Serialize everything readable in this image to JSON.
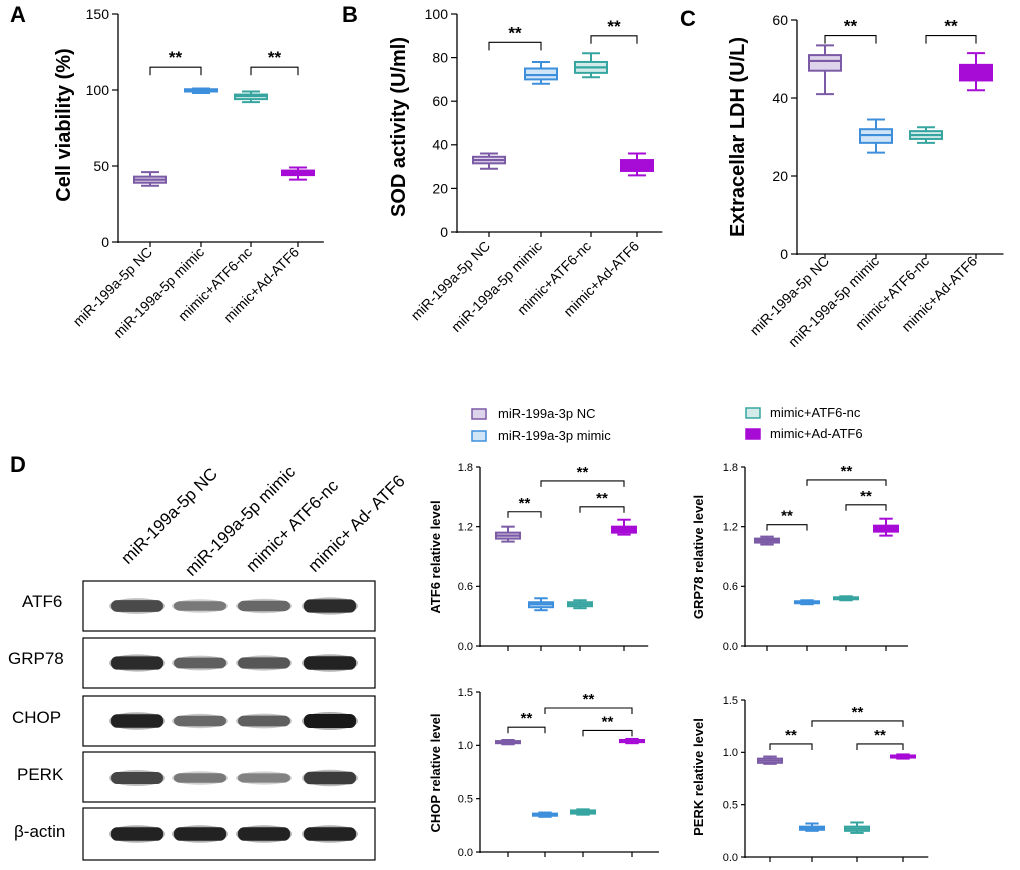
{
  "panels": {
    "A": {
      "label": "A"
    },
    "B": {
      "label": "B"
    },
    "C": {
      "label": "C"
    },
    "D": {
      "label": "D"
    }
  },
  "colors": {
    "nc": "#7b5aa6",
    "mimic": "#3d8fdc",
    "atf6nc": "#36a5a0",
    "adatf6": "#a70bd6"
  },
  "chart_data": [
    {
      "id": "A",
      "type": "box",
      "ylabel": "Cell viability (%)",
      "ylim": [
        0,
        150
      ],
      "yticks": [
        0,
        50,
        100,
        150
      ],
      "categories": [
        "miR-199a-5p NC",
        "miR-199a-5p mimic",
        "mimic+ATF6-nc",
        "mimic+Ad-ATF6"
      ],
      "series": [
        {
          "name": "miR-199a-5p NC",
          "min": 37,
          "q1": 39,
          "median": 41,
          "q3": 43,
          "max": 46
        },
        {
          "name": "miR-199a-5p mimic",
          "min": 98,
          "q1": 99,
          "median": 100,
          "q3": 100.5,
          "max": 101
        },
        {
          "name": "mimic+ATF6-nc",
          "min": 92,
          "q1": 94,
          "median": 96,
          "q3": 97,
          "max": 99
        },
        {
          "name": "mimic+Ad-ATF6",
          "min": 41,
          "q1": 44,
          "median": 46,
          "q3": 47,
          "max": 49
        }
      ],
      "significance": [
        {
          "from": 0,
          "to": 1,
          "label": "**",
          "level": 115
        },
        {
          "from": 2,
          "to": 3,
          "label": "**",
          "level": 115
        }
      ]
    },
    {
      "id": "B",
      "type": "box",
      "ylabel": "SOD activity (U/ml)",
      "ylim": [
        0,
        100
      ],
      "yticks": [
        0,
        20,
        40,
        60,
        80,
        100
      ],
      "categories": [
        "miR-199a-5p NC",
        "miR-199a-5p mimic",
        "mimic+ATF6-nc",
        "mimic+Ad-ATF6"
      ],
      "series": [
        {
          "name": "miR-199a-5p NC",
          "min": 29,
          "q1": 31.5,
          "median": 33,
          "q3": 34.5,
          "max": 36
        },
        {
          "name": "miR-199a-5p mimic",
          "min": 68,
          "q1": 70,
          "median": 72,
          "q3": 75,
          "max": 78
        },
        {
          "name": "mimic+ATF6-nc",
          "min": 71,
          "q1": 73,
          "median": 75.5,
          "q3": 78,
          "max": 82
        },
        {
          "name": "mimic+Ad-ATF6",
          "min": 26,
          "q1": 28,
          "median": 30,
          "q3": 33,
          "max": 36
        }
      ],
      "significance": [
        {
          "from": 0,
          "to": 1,
          "label": "**",
          "level": 87
        },
        {
          "from": 2,
          "to": 3,
          "label": "**",
          "level": 90
        }
      ]
    },
    {
      "id": "C",
      "type": "box",
      "ylabel": "Extracellar LDH (U/L)",
      "ylim": [
        0,
        60
      ],
      "yticks": [
        0,
        20,
        40,
        60
      ],
      "categories": [
        "miR-199a-5p NC",
        "miR-199a-5p mimic",
        "mimic+ATF6-nc",
        "mimic+Ad-ATF6"
      ],
      "series": [
        {
          "name": "miR-199a-5p NC",
          "min": 41,
          "q1": 47,
          "median": 49.5,
          "q3": 51,
          "max": 53.5
        },
        {
          "name": "miR-199a-5p mimic",
          "min": 26,
          "q1": 28.5,
          "median": 30.5,
          "q3": 32,
          "max": 34.5
        },
        {
          "name": "mimic+ATF6-nc",
          "min": 28.5,
          "q1": 29.5,
          "median": 30.5,
          "q3": 31.5,
          "max": 32.5
        },
        {
          "name": "mimic+Ad-ATF6",
          "min": 42,
          "q1": 44.5,
          "median": 47,
          "q3": 48.5,
          "max": 51.5
        }
      ],
      "significance": [
        {
          "from": 0,
          "to": 1,
          "label": "**",
          "level": 56
        },
        {
          "from": 2,
          "to": 3,
          "label": "**",
          "level": 56
        }
      ]
    },
    {
      "id": "D-ATF6",
      "type": "box",
      "ylabel": "ATF6 relative level",
      "ylim": [
        0,
        1.8
      ],
      "yticks": [
        "0.0",
        "0.6",
        "1.2",
        "1.8"
      ],
      "series": [
        {
          "name": "miR-199a-3p NC",
          "min": 1.05,
          "q1": 1.08,
          "median": 1.11,
          "q3": 1.14,
          "max": 1.2
        },
        {
          "name": "miR-199a-3p mimic",
          "min": 0.36,
          "q1": 0.39,
          "median": 0.42,
          "q3": 0.44,
          "max": 0.48
        },
        {
          "name": "mimic+ATF6-nc",
          "min": 0.38,
          "q1": 0.4,
          "median": 0.42,
          "q3": 0.44,
          "max": 0.46
        },
        {
          "name": "mimic+Ad-ATF6",
          "min": 1.12,
          "q1": 1.14,
          "median": 1.17,
          "q3": 1.2,
          "max": 1.27
        }
      ],
      "significance": [
        {
          "from": 0,
          "to": 1,
          "label": "**",
          "level": 1.35
        },
        {
          "from": 2,
          "to": 3,
          "label": "**",
          "level": 1.4
        },
        {
          "from": 1,
          "to": 3,
          "label": "**",
          "level": 1.66
        }
      ]
    },
    {
      "id": "D-GRP78",
      "type": "box",
      "ylabel": "GRP78 relative level",
      "ylim": [
        0,
        1.8
      ],
      "yticks": [
        "0.0",
        "0.6",
        "1.2",
        "1.8"
      ],
      "series": [
        {
          "name": "miR-199a-3p NC",
          "min": 1.02,
          "q1": 1.04,
          "median": 1.06,
          "q3": 1.08,
          "max": 1.1
        },
        {
          "name": "miR-199a-3p mimic",
          "min": 0.42,
          "q1": 0.43,
          "median": 0.44,
          "q3": 0.45,
          "max": 0.46
        },
        {
          "name": "mimic+ATF6-nc",
          "min": 0.46,
          "q1": 0.47,
          "median": 0.48,
          "q3": 0.49,
          "max": 0.5
        },
        {
          "name": "mimic+Ad-ATF6",
          "min": 1.11,
          "q1": 1.15,
          "median": 1.18,
          "q3": 1.21,
          "max": 1.28
        }
      ],
      "significance": [
        {
          "from": 0,
          "to": 1,
          "label": "**",
          "level": 1.22
        },
        {
          "from": 2,
          "to": 3,
          "label": "**",
          "level": 1.42
        },
        {
          "from": 1,
          "to": 3,
          "label": "**",
          "level": 1.67
        }
      ]
    },
    {
      "id": "D-CHOP",
      "type": "box",
      "ylabel": "CHOP relative level",
      "ylim": [
        0,
        1.5
      ],
      "yticks": [
        "0.0",
        "0.5",
        "1.0",
        "1.5"
      ],
      "series": [
        {
          "name": "miR-199a-3p NC",
          "min": 1.01,
          "q1": 1.02,
          "median": 1.03,
          "q3": 1.04,
          "max": 1.05
        },
        {
          "name": "miR-199a-3p mimic",
          "min": 0.33,
          "q1": 0.34,
          "median": 0.35,
          "q3": 0.36,
          "max": 0.37
        },
        {
          "name": "mimic+ATF6-nc",
          "min": 0.35,
          "q1": 0.36,
          "median": 0.375,
          "q3": 0.39,
          "max": 0.4
        },
        {
          "name": "mimic+Ad-ATF6",
          "min": 1.02,
          "q1": 1.03,
          "median": 1.04,
          "q3": 1.05,
          "max": 1.06
        }
      ],
      "significance": [
        {
          "from": 0,
          "to": 1,
          "label": "**",
          "level": 1.17
        },
        {
          "from": 2,
          "to": 3,
          "label": "**",
          "level": 1.14
        },
        {
          "from": 1,
          "to": 3,
          "label": "**",
          "level": 1.35
        }
      ]
    },
    {
      "id": "D-PERK",
      "type": "box",
      "ylabel": "PERK relative level",
      "ylim": [
        0,
        1.5
      ],
      "yticks": [
        "0.0",
        "0.5",
        "1.0",
        "1.5"
      ],
      "series": [
        {
          "name": "miR-199a-3p NC",
          "min": 0.89,
          "q1": 0.9,
          "median": 0.92,
          "q3": 0.94,
          "max": 0.96
        },
        {
          "name": "miR-199a-3p mimic",
          "min": 0.25,
          "q1": 0.26,
          "median": 0.275,
          "q3": 0.29,
          "max": 0.32
        },
        {
          "name": "mimic+ATF6-nc",
          "min": 0.23,
          "q1": 0.25,
          "median": 0.27,
          "q3": 0.29,
          "max": 0.33
        },
        {
          "name": "mimic+Ad-ATF6",
          "min": 0.94,
          "q1": 0.95,
          "median": 0.96,
          "q3": 0.97,
          "max": 0.98
        }
      ],
      "significance": [
        {
          "from": 0,
          "to": 1,
          "label": "**",
          "level": 1.08
        },
        {
          "from": 2,
          "to": 3,
          "label": "**",
          "level": 1.08
        },
        {
          "from": 1,
          "to": 3,
          "label": "**",
          "level": 1.3
        }
      ]
    }
  ],
  "legend": [
    {
      "label": "miR-199a-3p NC",
      "color": "nc"
    },
    {
      "label": "miR-199a-3p mimic",
      "color": "mimic"
    },
    {
      "label": "mimic+ATF6-nc",
      "color": "atf6nc"
    },
    {
      "label": "mimic+Ad-ATF6",
      "color": "adatf6"
    }
  ],
  "western_blot": {
    "lanes": [
      "miR-199a-5p NC",
      "miR-199a-5p mimic",
      "mimic+ ATF6-nc",
      "mimic+ Ad- ATF6"
    ],
    "rows": [
      {
        "label": "ATF6",
        "intensities": [
          0.72,
          0.45,
          0.55,
          0.9
        ]
      },
      {
        "label": "GRP78",
        "intensities": [
          0.9,
          0.6,
          0.65,
          0.95
        ]
      },
      {
        "label": "CHOP",
        "intensities": [
          0.95,
          0.55,
          0.6,
          1.0
        ]
      },
      {
        "label": "PERK",
        "intensities": [
          0.75,
          0.45,
          0.4,
          0.8
        ]
      },
      {
        "label": "β-actin",
        "intensities": [
          0.95,
          0.95,
          0.95,
          0.95
        ]
      }
    ]
  }
}
